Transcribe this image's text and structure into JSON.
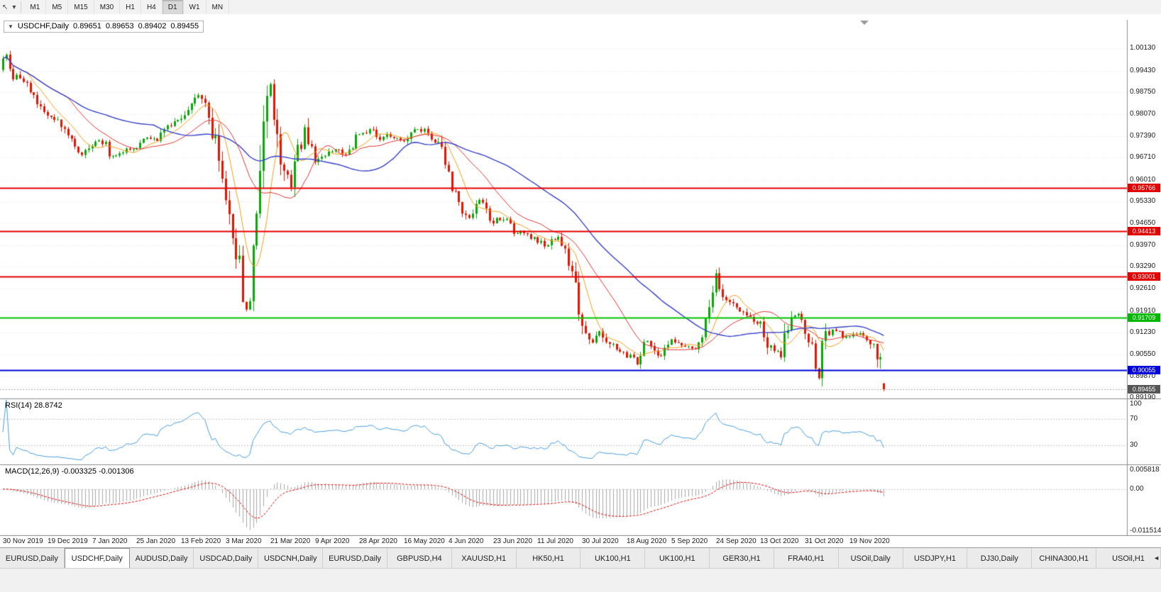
{
  "colors": {
    "up": "#07A807",
    "down": "#E51400",
    "grid": "#E8E8E8",
    "panel_sep": "#8C8C8C",
    "rsi_line": "#4A9EDE",
    "rsi_level": "#C8C8C8",
    "macd_hist": "#A6A6A6",
    "macd_signal": "#DD0000"
  },
  "toolbar": {
    "cursor_icon": "↖",
    "dropdown_icon": "▾",
    "timeframes": [
      "M1",
      "M5",
      "M15",
      "M30",
      "H1",
      "H4",
      "D1",
      "W1",
      "MN"
    ],
    "active_timeframe": "D1"
  },
  "chart": {
    "collapse_icon": "▼",
    "symbol": "USDCHF,Daily",
    "open": "0.89651",
    "high": "0.89653",
    "low": "0.89402",
    "close": "0.89455"
  },
  "price_axis": {
    "ticks": [
      "1.00130",
      "0.99430",
      "0.98750",
      "0.98070",
      "0.97390",
      "0.96710",
      "0.96010",
      "0.95330",
      "0.94650",
      "0.93970",
      "0.93290",
      "0.92610",
      "0.91910",
      "0.91230",
      "0.90550",
      "0.89870",
      "0.89190"
    ]
  },
  "rsi": {
    "label": "RSI(14) 28.8742",
    "axis": [
      "100",
      "70",
      "30"
    ]
  },
  "macd": {
    "label": "MACD(12,26,9) -0.003325 -0.001306",
    "axis_top": "0.005818",
    "axis_zero": "0.00",
    "axis_bottom": "-0.011514"
  },
  "tabs": {
    "items": [
      "EURUSD,Daily",
      "USDCHF,Daily",
      "AUDUSD,Daily",
      "USDCAD,Daily",
      "USDCNH,Daily",
      "EURUSD,Daily",
      "GBPUSD,H4",
      "XAUUSD,H1",
      "HK50,H1",
      "UK100,H1",
      "UK100,H1",
      "GER30,H1",
      "FRA40,H1",
      "USOil,Daily",
      "USDJPY,H1",
      "DJ30,Daily",
      "CHINA300,H1",
      "USOil,H1"
    ],
    "active_index": 1,
    "scroll_left_icon": "◄"
  },
  "chart_data": [
    {
      "type": "candlestick",
      "title": "USDCHF,Daily",
      "bars": 258,
      "label_every": 13,
      "x_labels": [
        "30 Nov 2019",
        "19 Dec 2019",
        "7 Jan 2020",
        "25 Jan 2020",
        "13 Feb 2020",
        "3 Mar 2020",
        "21 Mar 2020",
        "9 Apr 2020",
        "28 Apr 2020",
        "16 May 2020",
        "4 Jun 2020",
        "23 Jun 2020",
        "11 Jul 2020",
        "30 Jul 2020",
        "18 Aug 2020",
        "5 Sep 2020",
        "24 Sep 2020",
        "13 Oct 2020",
        "31 Oct 2020",
        "19 Nov 2020"
      ],
      "ylim": [
        0.8905,
        1.0102
      ],
      "last_ohlc": [
        0.89651,
        0.89653,
        0.89402,
        0.89455
      ],
      "anchors": [
        [
          0,
          0.9985
        ],
        [
          1,
          1.0002
        ],
        [
          3,
          0.9932
        ],
        [
          6,
          0.9906
        ],
        [
          9,
          0.9868
        ],
        [
          13,
          0.98
        ],
        [
          16,
          0.9788
        ],
        [
          20,
          0.9726
        ],
        [
          23,
          0.9672
        ],
        [
          26,
          0.9718
        ],
        [
          29,
          0.9722
        ],
        [
          32,
          0.9672
        ],
        [
          35,
          0.969
        ],
        [
          39,
          0.97
        ],
        [
          42,
          0.9738
        ],
        [
          45,
          0.9726
        ],
        [
          49,
          0.9778
        ],
        [
          52,
          0.98
        ],
        [
          55,
          0.9845
        ],
        [
          57,
          0.9868
        ],
        [
          59,
          0.9838
        ],
        [
          62,
          0.9712
        ],
        [
          65,
          0.956
        ],
        [
          67,
          0.9428
        ],
        [
          69,
          0.933
        ],
        [
          71,
          0.9192
        ],
        [
          73,
          0.9345
        ],
        [
          75,
          0.959
        ],
        [
          77,
          0.9845
        ],
        [
          78,
          0.9902
        ],
        [
          80,
          0.9762
        ],
        [
          82,
          0.9622
        ],
        [
          84,
          0.9582
        ],
        [
          86,
          0.968
        ],
        [
          88,
          0.9772
        ],
        [
          91,
          0.9662
        ],
        [
          94,
          0.9682
        ],
        [
          97,
          0.97
        ],
        [
          100,
          0.9682
        ],
        [
          104,
          0.9742
        ],
        [
          107,
          0.9762
        ],
        [
          110,
          0.973
        ],
        [
          113,
          0.9742
        ],
        [
          117,
          0.973
        ],
        [
          120,
          0.9762
        ],
        [
          123,
          0.9752
        ],
        [
          126,
          0.973
        ],
        [
          128,
          0.97
        ],
        [
          130,
          0.9622
        ],
        [
          133,
          0.9522
        ],
        [
          136,
          0.9482
        ],
        [
          139,
          0.9532
        ],
        [
          141,
          0.9502
        ],
        [
          143,
          0.9472
        ],
        [
          146,
          0.9482
        ],
        [
          149,
          0.9442
        ],
        [
          152,
          0.9432
        ],
        [
          156,
          0.9412
        ],
        [
          159,
          0.9392
        ],
        [
          162,
          0.9432
        ],
        [
          165,
          0.9352
        ],
        [
          167,
          0.9252
        ],
        [
          169,
          0.9142
        ],
        [
          172,
          0.9092
        ],
        [
          174,
          0.9132
        ],
        [
          176,
          0.9102
        ],
        [
          179,
          0.9062
        ],
        [
          182,
          0.9052
        ],
        [
          185,
          0.9032
        ],
        [
          188,
          0.9102
        ],
        [
          191,
          0.9052
        ],
        [
          195,
          0.9095
        ],
        [
          198,
          0.9082
        ],
        [
          201,
          0.9072
        ],
        [
          204,
          0.9112
        ],
        [
          206,
          0.9182
        ],
        [
          208,
          0.9292
        ],
        [
          210,
          0.9252
        ],
        [
          213,
          0.9202
        ],
        [
          216,
          0.9182
        ],
        [
          219,
          0.9152
        ],
        [
          221,
          0.9145
        ],
        [
          224,
          0.9072
        ],
        [
          227,
          0.9062
        ],
        [
          229,
          0.9142
        ],
        [
          231,
          0.9182
        ],
        [
          234,
          0.9135
        ],
        [
          236,
          0.9062
        ],
        [
          238,
          0.899
        ],
        [
          240,
          0.9118
        ],
        [
          243,
          0.9132
        ],
        [
          245,
          0.9112
        ],
        [
          247,
          0.9112
        ],
        [
          250,
          0.9122
        ],
        [
          252,
          0.9112
        ],
        [
          254,
          0.9082
        ],
        [
          256,
          0.901
        ],
        [
          257,
          0.89455
        ]
      ],
      "moving_averages": [
        {
          "period": 8,
          "color": "#F59E1B",
          "width": 1
        },
        {
          "period": 20,
          "color": "#E03434",
          "width": 1
        },
        {
          "period": 45,
          "color": "#3742C8",
          "width": 1.4
        }
      ],
      "hlines": [
        {
          "label": "0.95766",
          "value": 0.95766,
          "color": "#E30000",
          "width": 2,
          "style": "solid",
          "badge": "#E30000"
        },
        {
          "label": "0.94413",
          "value": 0.94413,
          "color": "#E30000",
          "width": 2,
          "style": "solid",
          "badge": "#E30000"
        },
        {
          "label": "0.93001",
          "value": 0.93001,
          "color": "#E30000",
          "width": 2,
          "style": "solid",
          "badge": "#E30000"
        },
        {
          "label": "0.91709",
          "value": 0.91709,
          "color": "#00C300",
          "width": 2,
          "style": "solid",
          "badge": "#00B800"
        },
        {
          "label": "0.90055",
          "value": 0.90055,
          "color": "#0000DC",
          "width": 2,
          "style": "solid",
          "badge": "#0000DC"
        },
        {
          "label": "0.89455",
          "value": 0.89455,
          "color": "#ADADAD",
          "width": 1,
          "style": "dotted",
          "badge": "#565656"
        }
      ]
    },
    {
      "type": "line",
      "name": "RSI",
      "params": "RSI(14)",
      "last_value": 28.8742,
      "range": [
        0,
        100
      ],
      "levels": [
        70,
        30
      ],
      "line_color": "#4A9EDE"
    },
    {
      "type": "bar",
      "name": "MACD",
      "params": "MACD(12,26,9)",
      "last_macd": -0.003325,
      "last_signal": -0.001306,
      "range": [
        -0.011514,
        0.005818
      ],
      "hist_color": "#A6A6A6",
      "signal_color": "#DD0000"
    }
  ]
}
